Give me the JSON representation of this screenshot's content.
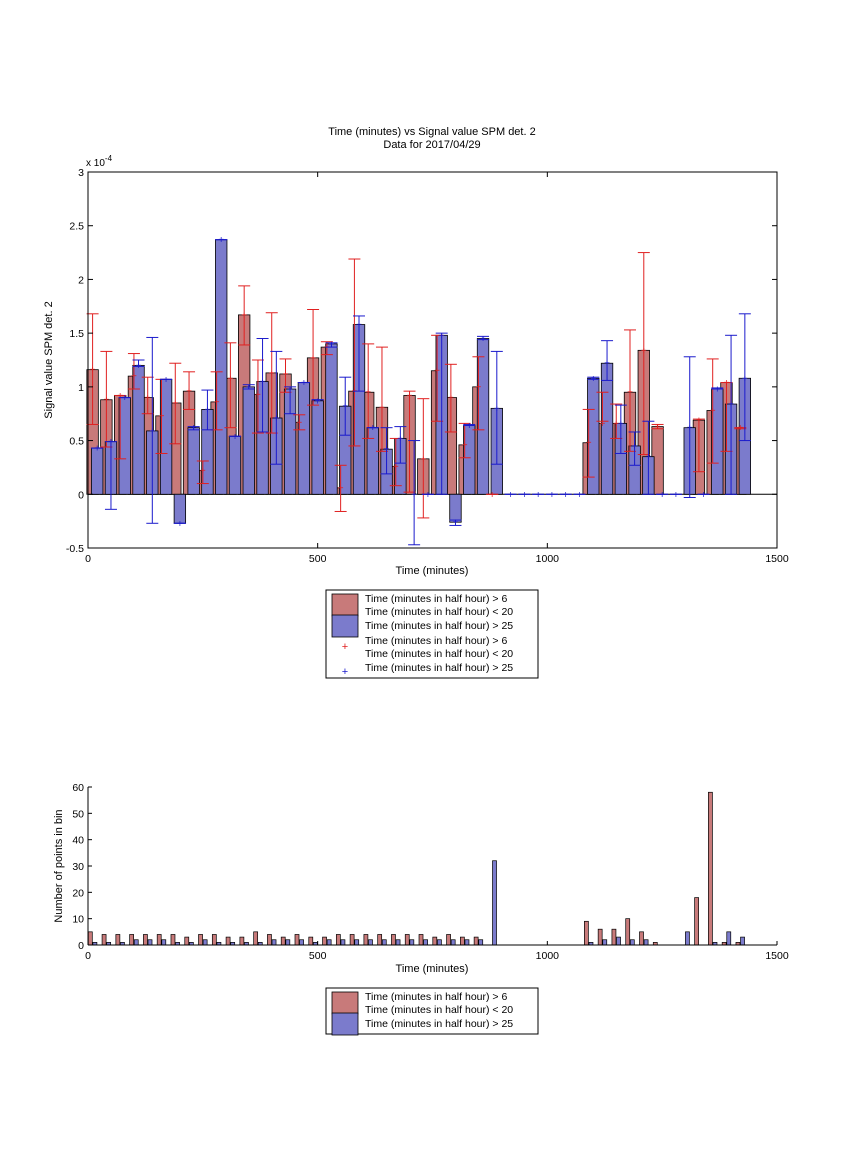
{
  "chart_data": [
    {
      "type": "bar",
      "title": "Time (minutes) vs Signal value SPM det. 2",
      "subtitle": "Data for 2017/04/29",
      "xlabel": "Time (minutes)",
      "ylabel": "Signal value SPM det. 2",
      "y_exponent_label": "x 10",
      "y_exponent_power": "-4",
      "xlim": [
        0,
        1500
      ],
      "ylim": [
        -0.5,
        3
      ],
      "y_scale": 0.0001,
      "x_ticks": [
        0,
        500,
        1000,
        1500
      ],
      "y_ticks": [
        -0.5,
        0,
        0.5,
        1,
        1.5,
        2,
        2.5,
        3
      ],
      "grid": false,
      "legend_position": "below",
      "legend": [
        "Time (minutes in half hour) > 6",
        "Time (minutes in half hour) < 20",
        "Time (minutes in half hour) > 25",
        "Time (minutes in half hour) > 6",
        "Time (minutes in half hour) < 20",
        "Time (minutes in half hour) > 25"
      ],
      "colors": {
        "red_bar": "#c87a7a",
        "blue_bar": "#7b7bcc",
        "red_err": "#e02020",
        "blue_err": "#1a1acc"
      },
      "series": [
        {
          "group": "red",
          "x": [
            10,
            40,
            70,
            100,
            130,
            160,
            190,
            220,
            250,
            280,
            310,
            340,
            370,
            400,
            430,
            460,
            490,
            520,
            550,
            580,
            610,
            640,
            670,
            700,
            730,
            760,
            790,
            820,
            850,
            880,
            1090,
            1120,
            1150,
            1180,
            1210,
            1240,
            1330,
            1360,
            1390,
            1420
          ],
          "values": [
            1.16,
            0.88,
            0.92,
            1.1,
            0.9,
            0.73,
            0.85,
            0.96,
            0.22,
            0.86,
            1.08,
            1.67,
            0.93,
            1.13,
            1.12,
            0.67,
            1.27,
            1.37,
            0.06,
            0.96,
            0.95,
            0.81,
            0.26,
            0.92,
            0.33,
            1.15,
            0.9,
            0.46,
            1.0,
            0.0,
            0.48,
            0.66,
            0.66,
            0.95,
            1.34,
            0.63,
            0.69,
            0.78,
            1.04,
            0.62
          ],
          "err_lo": [
            0.65,
            0.44,
            0.33,
            0.98,
            0.75,
            0.38,
            0.47,
            0.79,
            0.1,
            0.6,
            0.62,
            1.39,
            0.57,
            0.57,
            0.95,
            0.6,
            0.83,
            1.3,
            -0.16,
            0.45,
            0.52,
            0.4,
            0.08,
            0.02,
            -0.22,
            0.68,
            0.58,
            0.34,
            0.6,
            0.0,
            0.16,
            0.68,
            0.52,
            0.4,
            0.37,
            0.61,
            0.21,
            0.29,
            0.4,
            0.61
          ],
          "err_hi": [
            1.68,
            1.33,
            0.92,
            1.31,
            1.09,
            1.07,
            1.22,
            1.14,
            0.31,
            1.14,
            1.41,
            1.94,
            1.25,
            1.69,
            1.26,
            0.74,
            1.72,
            1.42,
            0.27,
            2.19,
            1.4,
            1.37,
            0.52,
            0.96,
            0.89,
            1.48,
            1.21,
            0.66,
            1.28,
            0.0,
            0.79,
            0.95,
            0.84,
            1.53,
            2.25,
            0.65,
            0.7,
            1.26,
            1.04,
            0.62
          ]
        },
        {
          "group": "blue",
          "x": [
            20,
            50,
            80,
            110,
            140,
            170,
            200,
            230,
            260,
            290,
            320,
            350,
            380,
            410,
            440,
            470,
            500,
            530,
            560,
            590,
            620,
            650,
            680,
            710,
            740,
            770,
            800,
            830,
            860,
            890,
            920,
            950,
            980,
            1010,
            1040,
            1070,
            1100,
            1130,
            1160,
            1190,
            1220,
            1250,
            1280,
            1310,
            1340,
            1370,
            1400,
            1430
          ],
          "values": [
            0.43,
            0.49,
            0.9,
            1.2,
            0.59,
            1.07,
            -0.27,
            0.62,
            0.79,
            2.37,
            0.54,
            1.0,
            1.05,
            0.71,
            0.98,
            1.04,
            0.87,
            1.4,
            0.82,
            1.58,
            0.62,
            0.42,
            0.52,
            0.0,
            0.0,
            1.48,
            -0.26,
            0.64,
            1.45,
            0.8,
            0.0,
            0.0,
            0.0,
            0.0,
            0.0,
            0.0,
            1.08,
            1.22,
            0.66,
            0.45,
            0.35,
            0.0,
            0.0,
            0.62,
            0.0,
            0.98,
            0.84,
            1.08
          ],
          "err_lo": [
            0.43,
            -0.14,
            0.9,
            1.19,
            -0.27,
            1.07,
            -0.27,
            0.6,
            0.6,
            2.37,
            0.54,
            0.98,
            0.58,
            0.28,
            0.75,
            1.04,
            0.88,
            1.37,
            0.55,
            0.96,
            0.62,
            0.19,
            0.29,
            -0.47,
            0.0,
            0.0,
            -0.29,
            0.64,
            1.44,
            0.28,
            0.0,
            0.0,
            0.0,
            0.0,
            0.0,
            0.0,
            1.07,
            1.06,
            0.38,
            0.27,
            0.0,
            0.0,
            0.0,
            -0.03,
            0.0,
            0.98,
            0.0,
            0.5
          ],
          "err_hi": [
            0.43,
            0.49,
            0.9,
            1.25,
            1.46,
            1.07,
            -0.27,
            0.63,
            0.97,
            2.37,
            0.54,
            1.02,
            1.45,
            1.33,
            1.0,
            1.04,
            0.88,
            1.41,
            1.09,
            1.66,
            0.62,
            0.62,
            0.63,
            0.5,
            0.0,
            1.5,
            -0.24,
            0.65,
            1.47,
            1.33,
            0.0,
            0.0,
            0.0,
            0.0,
            0.0,
            0.0,
            1.09,
            1.43,
            0.83,
            0.58,
            0.68,
            0.0,
            0.0,
            1.28,
            0.0,
            0.99,
            1.48,
            1.68
          ]
        }
      ]
    },
    {
      "type": "bar",
      "title": "",
      "xlabel": "Time (minutes)",
      "ylabel": "Number of points in bin",
      "xlim": [
        0,
        1500
      ],
      "ylim": [
        0,
        60
      ],
      "x_ticks": [
        0,
        500,
        1000,
        1500
      ],
      "y_ticks": [
        0,
        10,
        20,
        30,
        40,
        50,
        60
      ],
      "grid": false,
      "legend_position": "below",
      "legend": [
        "Time (minutes in half hour) > 6",
        "Time (minutes in half hour) < 20",
        "Time (minutes in half hour) > 25"
      ],
      "colors": {
        "red_bar": "#c87a7a",
        "blue_bar": "#7b7bcc"
      },
      "series": [
        {
          "group": "red",
          "x": [
            5,
            35,
            65,
            95,
            125,
            155,
            185,
            215,
            245,
            275,
            305,
            335,
            365,
            395,
            425,
            455,
            485,
            515,
            545,
            575,
            605,
            635,
            665,
            695,
            725,
            755,
            785,
            815,
            845,
            1085,
            1115,
            1145,
            1175,
            1205,
            1235,
            1325,
            1355,
            1385,
            1415
          ],
          "values": [
            5,
            4,
            4,
            4,
            4,
            4,
            4,
            3,
            4,
            4,
            3,
            3,
            5,
            4,
            3,
            4,
            3,
            3,
            4,
            4,
            4,
            4,
            4,
            4,
            4,
            3,
            4,
            3,
            3,
            9,
            6,
            6,
            10,
            5,
            1,
            18,
            58,
            1,
            1
          ]
        },
        {
          "group": "blue",
          "x": [
            15,
            45,
            75,
            105,
            135,
            165,
            195,
            225,
            255,
            285,
            315,
            345,
            375,
            405,
            435,
            465,
            495,
            525,
            555,
            585,
            615,
            645,
            675,
            705,
            735,
            765,
            795,
            825,
            855,
            885,
            1095,
            1125,
            1155,
            1185,
            1215,
            1305,
            1365,
            1395,
            1425
          ],
          "values": [
            1,
            1,
            1,
            2,
            2,
            2,
            1,
            1,
            2,
            1,
            1,
            1,
            1,
            2,
            2,
            2,
            1,
            2,
            2,
            2,
            2,
            2,
            2,
            2,
            2,
            2,
            2,
            2,
            2,
            32,
            1,
            2,
            3,
            2,
            2,
            5,
            1,
            5,
            3
          ]
        }
      ]
    }
  ]
}
